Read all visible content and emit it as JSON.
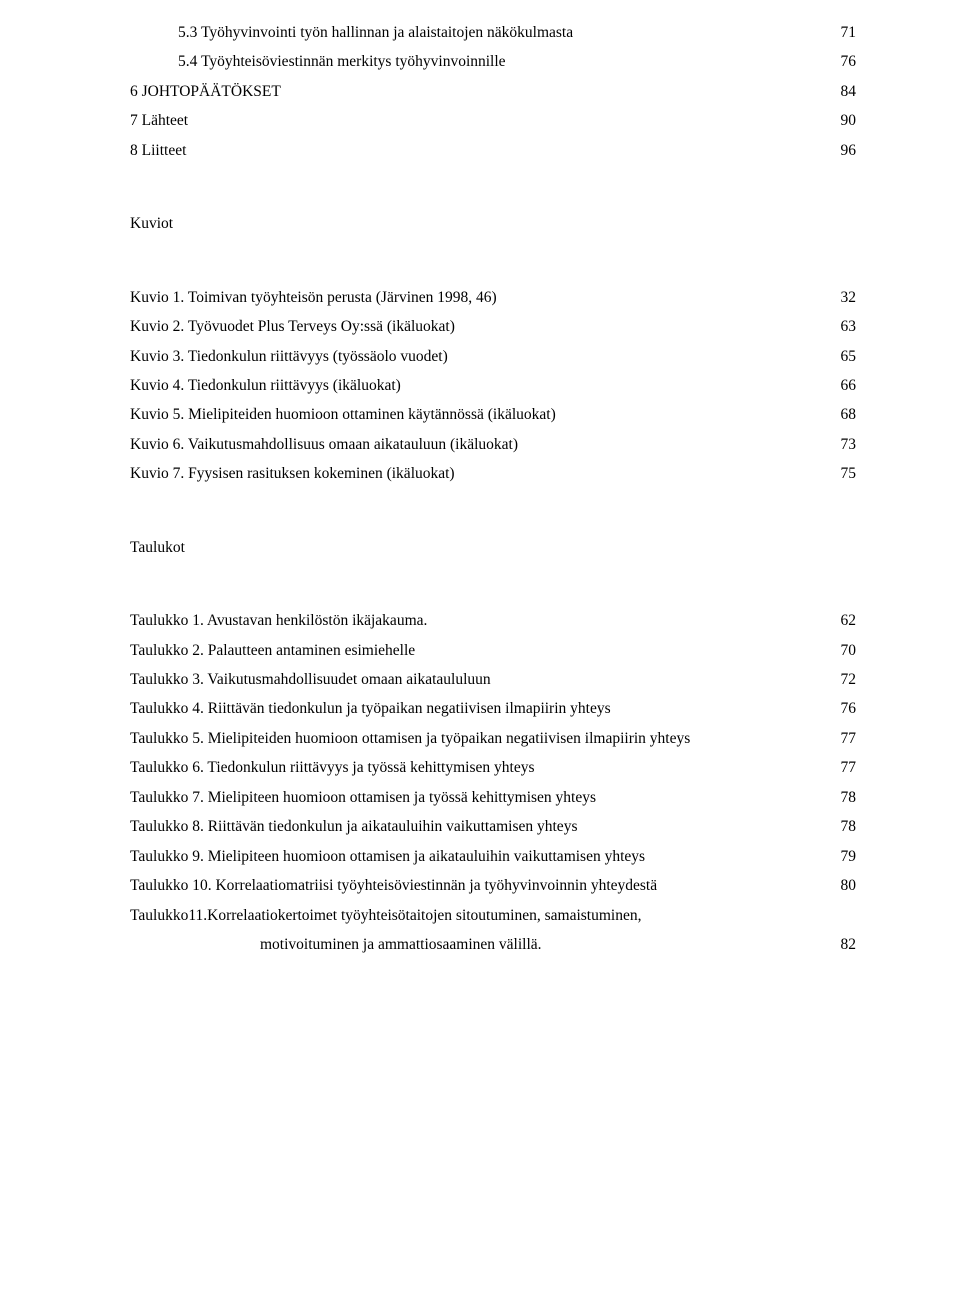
{
  "toc_top": [
    {
      "label": "5.3 Työhyvinvointi työn hallinnan ja alaistaitojen näkökulmasta",
      "page": "71"
    },
    {
      "label": "5.4 Työyhteisöviestinnän merkitys työhyvinvoinnille",
      "page": "76"
    },
    {
      "label": "6 JOHTOPÄÄTÖKSET",
      "page": "84"
    },
    {
      "label": "7 Lähteet",
      "page": "90"
    },
    {
      "label": "8 Liitteet",
      "page": "96"
    }
  ],
  "kuviot_heading": "Kuviot",
  "kuviot": [
    {
      "label": "Kuvio 1. Toimivan työyhteisön perusta (Järvinen 1998, 46)",
      "page": "32"
    },
    {
      "label": "Kuvio 2. Työvuodet Plus Terveys Oy:ssä (ikäluokat)",
      "page": "63"
    },
    {
      "label": "Kuvio 3. Tiedonkulun riittävyys (työssäolo vuodet)",
      "page": "65"
    },
    {
      "label": "Kuvio 4. Tiedonkulun riittävyys (ikäluokat)",
      "page": "66"
    },
    {
      "label": "Kuvio 5. Mielipiteiden huomioon ottaminen käytännössä (ikäluokat)",
      "page": "68"
    },
    {
      "label": "Kuvio 6. Vaikutusmahdollisuus omaan aikatauluun (ikäluokat)",
      "page": "73"
    },
    {
      "label": "Kuvio 7. Fyysisen rasituksen kokeminen (ikäluokat)",
      "page": "75"
    }
  ],
  "taulukot_heading": "Taulukot",
  "taulukot": [
    {
      "label": "Taulukko 1. Avustavan henkilöstön ikäjakauma.",
      "page": "62"
    },
    {
      "label": "Taulukko 2. Palautteen antaminen esimiehelle",
      "page": "70"
    },
    {
      "label": "Taulukko 3. Vaikutusmahdollisuudet omaan aikataululuun",
      "page": "72"
    },
    {
      "label": "Taulukko 4. Riittävän tiedonkulun ja työpaikan negatiivisen ilmapiirin yhteys",
      "page": "76"
    },
    {
      "label": "Taulukko 5. Mielipiteiden huomioon ottamisen ja työpaikan negatiivisen ilmapiirin yhteys",
      "page": "77"
    },
    {
      "label": "Taulukko 6. Tiedonkulun riittävyys ja työssä kehittymisen yhteys",
      "page": "77"
    },
    {
      "label": "Taulukko 7. Mielipiteen huomioon ottamisen ja työssä kehittymisen yhteys",
      "page": "78"
    },
    {
      "label": "Taulukko 8. Riittävän tiedonkulun ja aikatauluihin vaikuttamisen yhteys",
      "page": "78"
    },
    {
      "label": "Taulukko 9. Mielipiteen huomioon ottamisen ja aikatauluihin vaikuttamisen yhteys",
      "page": "79"
    },
    {
      "label": "Taulukko 10. Korrelaatiomatriisi työyhteisöviestinnän ja työhyvinvoinnin yhteydestä",
      "page": "80"
    }
  ],
  "taulukko11_line1": "Taulukko11.Korrelaatiokertoimet työyhteisötaitojen sitoutuminen, samaistuminen,",
  "taulukko11_line2": "motivoituminen ja ammattiosaaminen välillä.",
  "taulukko11_page": "82"
}
